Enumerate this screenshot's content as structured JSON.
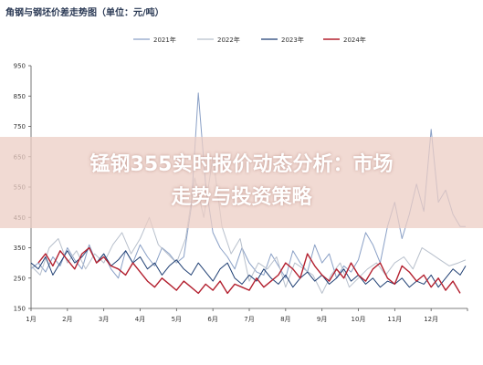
{
  "chart_data": {
    "type": "line",
    "title": "角钢与钢坯价差走势图（单位：元/吨）",
    "xlabel": "",
    "ylabel": "",
    "ylim": [
      150,
      950
    ],
    "yticks": [
      150,
      250,
      350,
      450,
      550,
      650,
      750,
      850,
      950
    ],
    "categories": [
      "1月",
      "2月",
      "3月",
      "4月",
      "5月",
      "6月",
      "7月",
      "8月",
      "9月",
      "10月",
      "11月",
      "12月"
    ],
    "grid": false,
    "legend": "top",
    "series": [
      {
        "name": "2021年",
        "color": "#8aa0c6",
        "x": [
          0,
          0.2,
          0.4,
          0.6,
          0.8,
          1,
          1.2,
          1.4,
          1.6,
          1.8,
          2,
          2.2,
          2.4,
          2.6,
          2.8,
          3,
          3.2,
          3.4,
          3.6,
          3.8,
          4,
          4.2,
          4.4,
          4.6,
          4.8,
          5,
          5.2,
          5.4,
          5.6,
          5.8,
          6,
          6.2,
          6.4,
          6.6,
          6.8,
          7,
          7.2,
          7.4,
          7.6,
          7.8,
          8,
          8.2,
          8.4,
          8.6,
          8.8,
          9,
          9.2,
          9.4,
          9.6,
          9.8,
          10,
          10.2,
          10.4,
          10.6,
          10.8,
          11,
          11.2,
          11.4,
          11.6,
          11.8,
          11.95
        ],
        "values": [
          280,
          300,
          270,
          320,
          290,
          350,
          310,
          280,
          360,
          300,
          330,
          280,
          250,
          340,
          300,
          360,
          320,
          290,
          350,
          330,
          300,
          320,
          480,
          860,
          560,
          400,
          350,
          320,
          280,
          350,
          300,
          270,
          260,
          330,
          290,
          250,
          340,
          300,
          270,
          360,
          300,
          330,
          250,
          290,
          270,
          310,
          400,
          360,
          300,
          420,
          500,
          380,
          460,
          560,
          470,
          740,
          500,
          540,
          460,
          420,
          420
        ]
      },
      {
        "name": "2022年",
        "color": "#b8c0cc",
        "x": [
          0,
          0.25,
          0.5,
          0.75,
          1,
          1.25,
          1.5,
          1.75,
          2,
          2.25,
          2.5,
          2.75,
          3,
          3.25,
          3.5,
          3.75,
          4,
          4.25,
          4.5,
          4.75,
          5,
          5.25,
          5.5,
          5.75,
          6,
          6.25,
          6.5,
          6.75,
          7,
          7.25,
          7.5,
          7.75,
          8,
          8.25,
          8.5,
          8.75,
          9,
          9.25,
          9.5,
          9.75,
          10,
          10.25,
          10.5,
          10.75,
          11,
          11.25,
          11.5,
          11.75,
          11.95
        ],
        "values": [
          290,
          260,
          350,
          380,
          300,
          340,
          280,
          330,
          300,
          360,
          400,
          330,
          380,
          450,
          360,
          330,
          300,
          380,
          580,
          450,
          650,
          420,
          330,
          380,
          240,
          300,
          280,
          320,
          220,
          300,
          280,
          260,
          200,
          260,
          300,
          220,
          250,
          280,
          300,
          260,
          300,
          320,
          280,
          350,
          330,
          310,
          290,
          300,
          310
        ]
      },
      {
        "name": "2023年",
        "color": "#1f3f73",
        "x": [
          0,
          0.2,
          0.4,
          0.6,
          0.8,
          1,
          1.2,
          1.4,
          1.6,
          1.8,
          2,
          2.2,
          2.4,
          2.6,
          2.8,
          3,
          3.2,
          3.4,
          3.6,
          3.8,
          4,
          4.2,
          4.4,
          4.6,
          4.8,
          5,
          5.2,
          5.4,
          5.6,
          5.8,
          6,
          6.2,
          6.4,
          6.6,
          6.8,
          7,
          7.2,
          7.4,
          7.6,
          7.8,
          8,
          8.2,
          8.4,
          8.6,
          8.8,
          9,
          9.2,
          9.4,
          9.6,
          9.8,
          10,
          10.2,
          10.4,
          10.6,
          10.8,
          11,
          11.2,
          11.4,
          11.6,
          11.8,
          11.95
        ],
        "values": [
          300,
          280,
          320,
          260,
          300,
          340,
          300,
          320,
          350,
          300,
          330,
          290,
          310,
          340,
          300,
          320,
          280,
          300,
          260,
          290,
          310,
          280,
          260,
          300,
          270,
          240,
          280,
          300,
          250,
          230,
          260,
          240,
          280,
          250,
          230,
          260,
          220,
          250,
          270,
          240,
          260,
          230,
          250,
          280,
          240,
          260,
          230,
          250,
          220,
          240,
          230,
          250,
          220,
          240,
          230,
          260,
          220,
          250,
          280,
          260,
          290
        ]
      },
      {
        "name": "2024年",
        "color": "#b3202f",
        "x": [
          0.2,
          0.4,
          0.6,
          0.8,
          1,
          1.2,
          1.4,
          1.6,
          1.8,
          2,
          2.2,
          2.4,
          2.6,
          2.8,
          3,
          3.2,
          3.4,
          3.6,
          3.8,
          4,
          4.2,
          4.4,
          4.6,
          4.8,
          5,
          5.2,
          5.4,
          5.6,
          5.8,
          6,
          6.2,
          6.4,
          6.6,
          6.8,
          7,
          7.2,
          7.4,
          7.6,
          7.8,
          8,
          8.2,
          8.4,
          8.6,
          8.8,
          9,
          9.2,
          9.4,
          9.6,
          9.8,
          10,
          10.2,
          10.4,
          10.6,
          10.8,
          11,
          11.2,
          11.4,
          11.6,
          11.8
        ],
        "values": [
          300,
          330,
          290,
          340,
          310,
          280,
          330,
          350,
          300,
          320,
          290,
          280,
          260,
          300,
          270,
          240,
          220,
          250,
          230,
          210,
          240,
          220,
          200,
          230,
          210,
          240,
          200,
          230,
          220,
          210,
          250,
          220,
          240,
          260,
          300,
          280,
          250,
          330,
          290,
          260,
          240,
          280,
          250,
          300,
          260,
          240,
          280,
          300,
          250,
          230,
          290,
          270,
          240,
          260,
          220,
          250,
          210,
          240,
          200
        ]
      }
    ]
  },
  "overlay": {
    "line1": "锰钢355实时报价动态分析：市场",
    "line2": "走势与投资策略"
  }
}
